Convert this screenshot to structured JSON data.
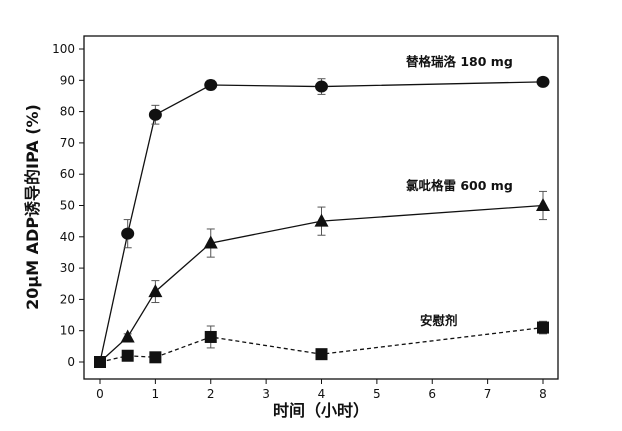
{
  "chart_data": {
    "type": "line",
    "title": "",
    "xlabel": "时间（小时）",
    "ylabel": "20μM ADP诱导的IPA (%)",
    "xlim": [
      0,
      8
    ],
    "ylim": [
      0,
      100
    ],
    "xticks": [
      0,
      1,
      2,
      3,
      4,
      5,
      6,
      7,
      8
    ],
    "yticks": [
      0,
      10,
      20,
      30,
      40,
      50,
      60,
      70,
      80,
      90,
      100
    ],
    "grid": false,
    "series": [
      {
        "name": "替格瑞洛 180 mg",
        "marker": "circle",
        "line_style": "solid",
        "x": [
          0,
          0.5,
          1,
          2,
          4,
          8
        ],
        "values": [
          0,
          41,
          79,
          88.5,
          88,
          89.5
        ],
        "errors": [
          0,
          4.5,
          3,
          1.5,
          2.5,
          1
        ]
      },
      {
        "name": "氯吡格雷 600 mg",
        "marker": "triangle",
        "line_style": "solid",
        "x": [
          0,
          0.5,
          1,
          2,
          4,
          8
        ],
        "values": [
          0,
          8,
          22.5,
          38,
          45,
          50
        ],
        "errors": [
          0,
          1,
          3.5,
          4.5,
          4.5,
          4.5
        ]
      },
      {
        "name": "安慰剂",
        "marker": "square",
        "line_style": "dashed",
        "x": [
          0,
          0.5,
          1,
          2,
          4,
          8
        ],
        "values": [
          0,
          2,
          1.5,
          8,
          2.5,
          11
        ],
        "errors": [
          0,
          1,
          1,
          3.5,
          1,
          2
        ]
      }
    ]
  }
}
